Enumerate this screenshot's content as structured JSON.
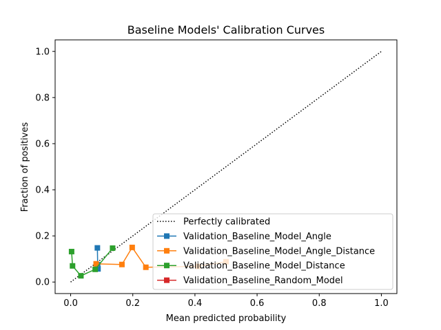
{
  "chart_data": {
    "type": "line",
    "title": "Baseline Models' Calibration Curves",
    "xlabel": "Mean predicted probability",
    "ylabel": "Fraction of positives",
    "xlim": [
      -0.05,
      1.05
    ],
    "ylim": [
      -0.05,
      1.05
    ],
    "xticks": [
      0.0,
      0.2,
      0.4,
      0.6,
      0.8,
      1.0
    ],
    "yticks": [
      0.0,
      0.2,
      0.4,
      0.6,
      0.8,
      1.0
    ],
    "xtick_labels": [
      "0.0",
      "0.2",
      "0.4",
      "0.6",
      "0.8",
      "1.0"
    ],
    "ytick_labels": [
      "0.0",
      "0.2",
      "0.4",
      "0.6",
      "0.8",
      "1.0"
    ],
    "grid": false,
    "legend_position": "lower-right",
    "reference": {
      "name": "Perfectly calibrated",
      "x": [
        0,
        1
      ],
      "y": [
        0,
        1
      ],
      "color": "#000000",
      "style": "dotted"
    },
    "series": [
      {
        "name": "Validation_Baseline_Model_Angle",
        "color": "#1f77b4",
        "x": [
          0.086,
          0.087,
          0.088
        ],
        "y": [
          0.148,
          0.075,
          0.057
        ]
      },
      {
        "name": "Validation_Baseline_Model_Angle_Distance",
        "color": "#ff7f0e",
        "x": [
          0.082,
          0.165,
          0.198,
          0.242,
          0.41,
          0.5
        ],
        "y": [
          0.079,
          0.076,
          0.15,
          0.064,
          0.068,
          0.088
        ]
      },
      {
        "name": "Validation_Baseline_Model_Distance",
        "color": "#2ca02c",
        "x": [
          0.003,
          0.006,
          0.033,
          0.079,
          0.135
        ],
        "y": [
          0.132,
          0.07,
          0.027,
          0.055,
          0.147
        ]
      },
      {
        "name": "Validation_Baseline_Random_Model",
        "color": "#d62728",
        "x": [],
        "y": []
      }
    ]
  }
}
